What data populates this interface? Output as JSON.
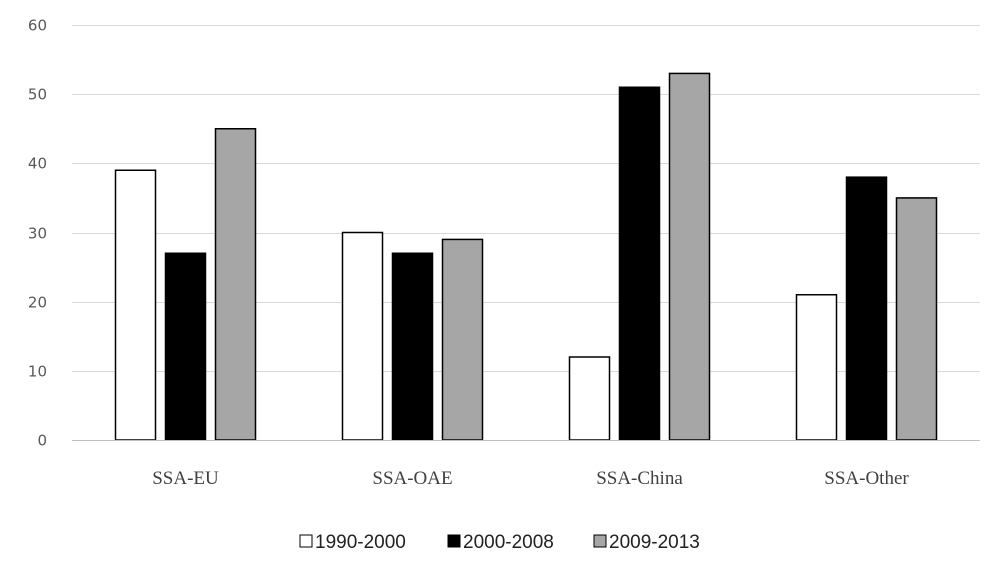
{
  "chart_data": {
    "type": "bar",
    "categories": [
      "SSA-EU",
      "SSA-OAE",
      "SSA-China",
      "SSA-Other"
    ],
    "series": [
      {
        "name": "1990-2000",
        "values": [
          39,
          30,
          12,
          21
        ],
        "color": "#ffffff"
      },
      {
        "name": "2000-2008",
        "values": [
          27,
          27,
          51,
          38
        ],
        "color": "#000000"
      },
      {
        "name": "2009-2013",
        "values": [
          45,
          29,
          53,
          35
        ],
        "color": "#a6a6a6"
      }
    ],
    "ylim": [
      0,
      60
    ],
    "yticks": [
      0,
      10,
      20,
      30,
      40,
      50,
      60
    ],
    "grid": true,
    "legend": "bottom-center",
    "title": "",
    "xlabel": "",
    "ylabel": ""
  }
}
